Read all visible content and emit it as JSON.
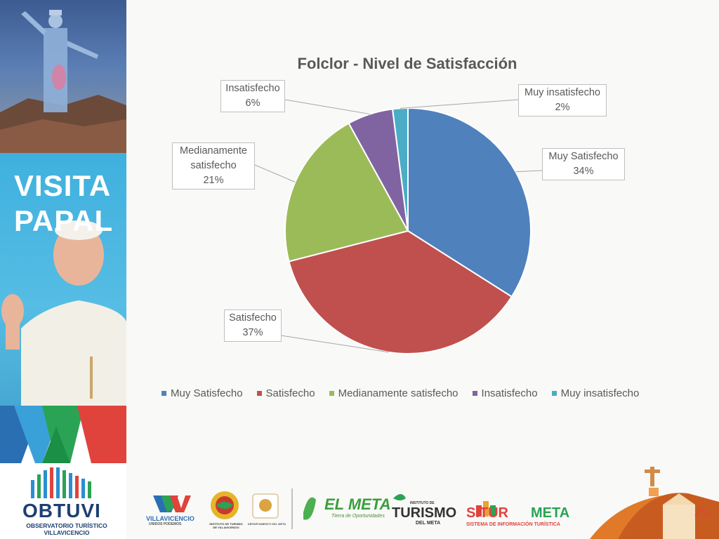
{
  "sidebar": {
    "title_line1": "VISITA",
    "title_line2": "PAPAL",
    "obtuvi": "OBTUVI",
    "obtuvi_sub1": "OBSERVATORIO TURÍSTICO",
    "obtuvi_sub2": "VILLAVICENCIO"
  },
  "footer": {
    "logo_villavicencio": "VILLAVICENCIO",
    "logo_villavicencio_sub": "UNIDOS PODEMOS",
    "logo_instituto": "INSTITUTO DE TURISMO DE VILLAVICENCIO",
    "logo_departamento": "DEPARTAMENTO DEL META",
    "logo_elmeta": "EL META",
    "logo_elmeta_sub": "Tierra de Oportunidades",
    "logo_turismo_pre": "INSTITUTO DE",
    "logo_turismo": "TURISMO",
    "logo_turismo_sub": "DEL META",
    "logo_situr": "SITUR",
    "logo_situr_meta": "META",
    "logo_situr_sub": "SISTEMA DE INFORMACIÓN TURÍSTICA"
  },
  "chart_data": {
    "type": "pie",
    "title": "Folclor - Nivel de Satisfacción",
    "slices": [
      {
        "label": "Muy Satisfecho",
        "value": 34,
        "pct": "34%",
        "color": "#4f81bd"
      },
      {
        "label": "Satisfecho",
        "value": 37,
        "pct": "37%",
        "color": "#c0504d"
      },
      {
        "label": "Medianamente satisfecho",
        "value": 21,
        "pct": "21%",
        "color": "#9bbb59"
      },
      {
        "label": "Insatisfecho",
        "value": 6,
        "pct": "6%",
        "color": "#8064a2"
      },
      {
        "label": "Muy insatisfecho",
        "value": 2,
        "pct": "2%",
        "color": "#4bacc6"
      }
    ],
    "legend_position": "bottom"
  }
}
